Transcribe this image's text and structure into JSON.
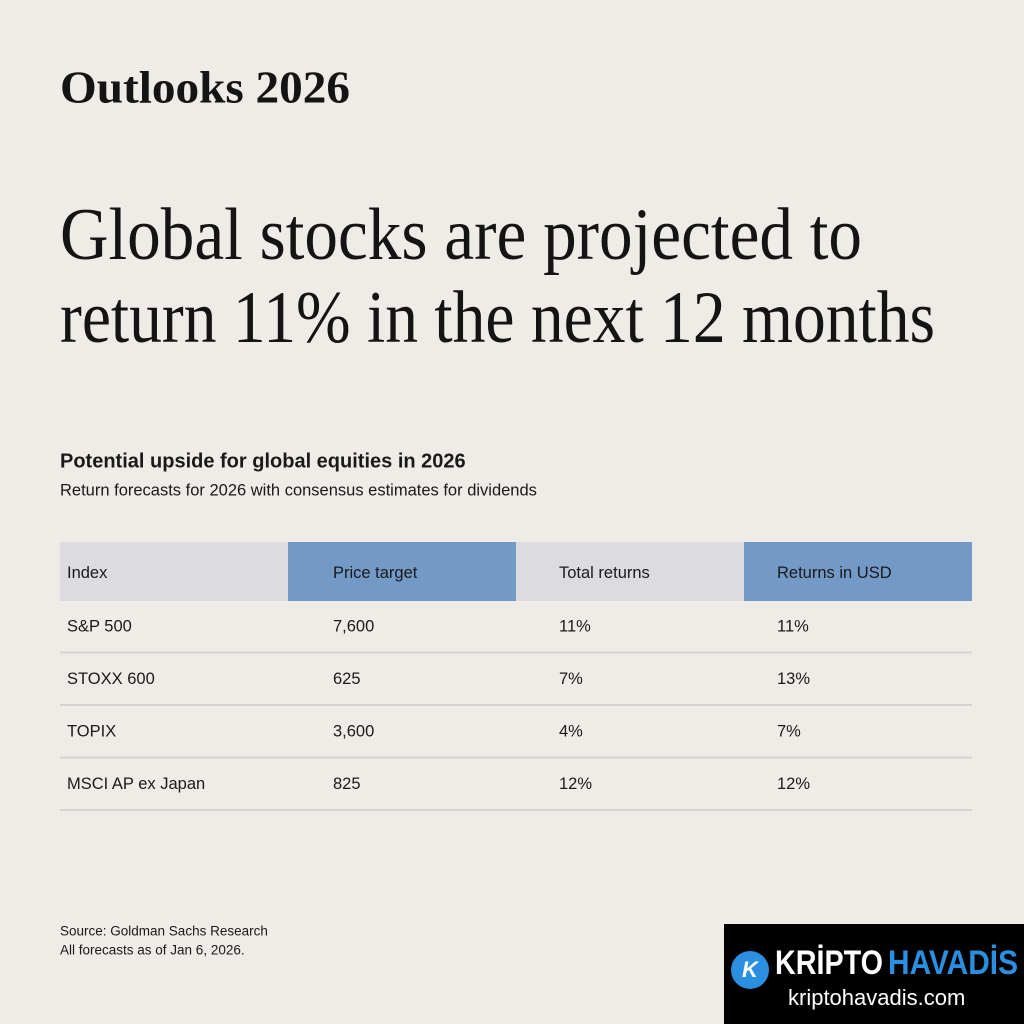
{
  "header": {
    "brand": "Outlooks 2026"
  },
  "headline": {
    "lines": [
      "Global stocks are projected to",
      "return 11% in the next 12 months"
    ]
  },
  "table": {
    "title": "Potential upside for global equities in 2026",
    "subtitle": "Return forecasts for 2026 with consensus estimates for dividends",
    "columns": [
      "Index",
      "Price target",
      "Total returns",
      "Returns in USD"
    ],
    "rows": [
      [
        "S&P 500",
        "7,600",
        "11%",
        "11%"
      ],
      [
        "STOXX 600",
        "625",
        "7%",
        "13%"
      ],
      [
        "TOPIX",
        "3,600",
        "4%",
        "7%"
      ],
      [
        "MSCI AP ex Japan",
        "825",
        "12%",
        "12%"
      ]
    ]
  },
  "footer": {
    "source": "Source: Goldman Sachs Research",
    "note": "All forecasts as of Jan 6, 2026."
  },
  "watermark": {
    "word1": "KRİPTO",
    "word2": "HAVADİS",
    "url": "kriptohavadis.com",
    "logo": "K"
  }
}
